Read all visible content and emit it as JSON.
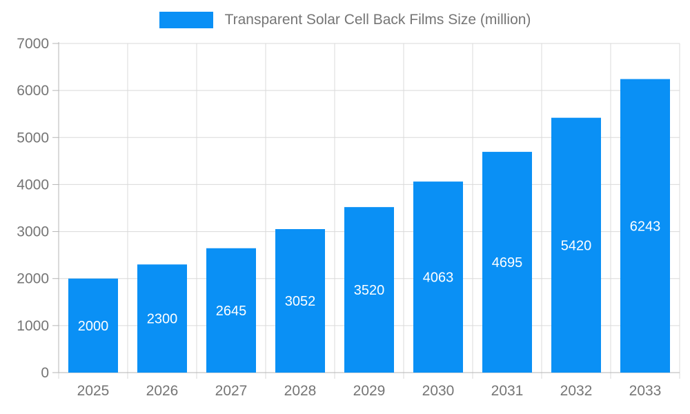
{
  "legend": {
    "label": "Transparent Solar Cell Back Films Size (million)"
  },
  "chart_data": {
    "type": "bar",
    "title": "Transparent Solar Cell Back Films Size (million)",
    "categories": [
      "2025",
      "2026",
      "2027",
      "2028",
      "2029",
      "2030",
      "2031",
      "2032",
      "2033"
    ],
    "values": [
      2000,
      2300,
      2645,
      3052,
      3520,
      4063,
      4695,
      5420,
      6243
    ],
    "xlabel": "",
    "ylabel": "",
    "ylim": [
      0,
      7000
    ],
    "yticks": [
      0,
      1000,
      2000,
      3000,
      4000,
      5000,
      6000,
      7000
    ],
    "grid": true,
    "legend_position": "top",
    "colors": {
      "bar": "#0a90f5",
      "value_label": "#ffffff",
      "axis_text": "#757575",
      "grid_line": "#d9d9d9",
      "axis_line": "#b5b5b5",
      "background": "#ffffff"
    }
  }
}
